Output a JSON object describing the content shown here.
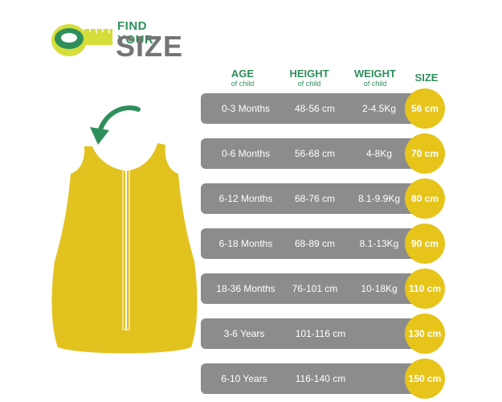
{
  "logo": {
    "line1": "FIND YOUR",
    "line2": "SIZE"
  },
  "headers": {
    "age": {
      "title": "AGE",
      "sub": "of child"
    },
    "height": {
      "title": "HEIGHT",
      "sub": "of child"
    },
    "weight": {
      "title": "WEIGHT",
      "sub": "of child"
    },
    "size": {
      "title": "SIZE"
    }
  },
  "rows": [
    {
      "age": "0-3 Months",
      "height": "48-56 cm",
      "weight": "2-4.5Kg",
      "size": "56 cm"
    },
    {
      "age": "0-6 Months",
      "height": "56-68 cm",
      "weight": "4-8Kg",
      "size": "70 cm"
    },
    {
      "age": "6-12 Months",
      "height": "68-76 cm",
      "weight": "8.1-9.9Kg",
      "size": "80 cm"
    },
    {
      "age": "6-18 Months",
      "height": "68-89 cm",
      "weight": "8.1-13Kg",
      "size": "90 cm"
    },
    {
      "age": "18-36 Months",
      "height": "76-101 cm",
      "weight": "10-18Kg",
      "size": "110 cm"
    },
    {
      "age": "3-6 Years",
      "height": "101-116 cm",
      "weight": "",
      "size": "130 cm"
    },
    {
      "age": "6-10 Years",
      "height": "116-140 cm",
      "weight": "",
      "size": "150 cm"
    }
  ],
  "colors": {
    "accent_green": "#2f8f5b",
    "row_gray": "#8c8c8c",
    "badge_yellow": "#e6c41a",
    "sleepsack_yellow": "#e2c21f",
    "logo_gray": "#757575"
  },
  "icons": {
    "logo": "tape-measure-icon",
    "pointer": "curved-arrow-icon",
    "product": "sleep-sack-illustration"
  }
}
